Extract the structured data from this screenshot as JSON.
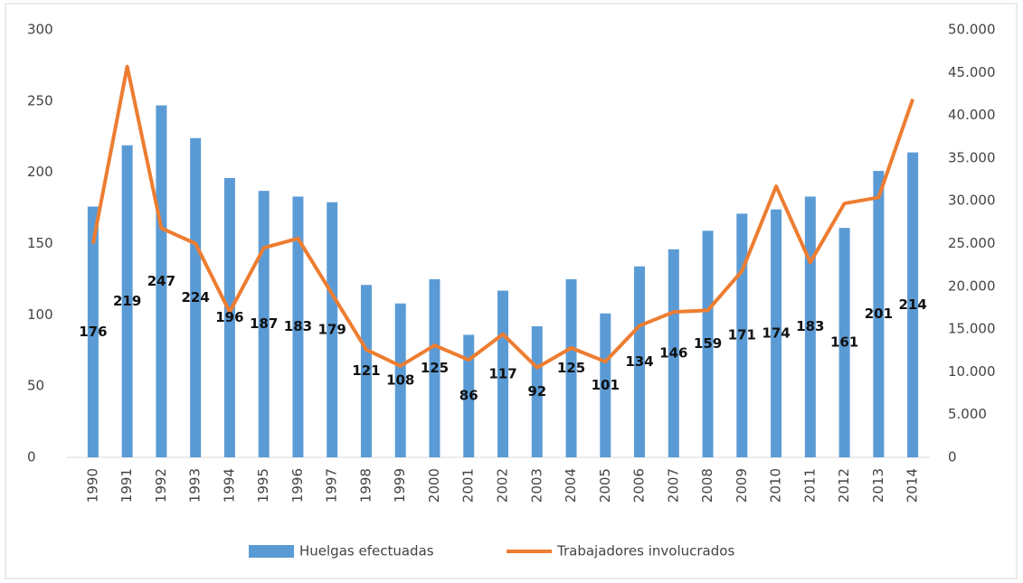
{
  "chart_data": {
    "type": "bar-line",
    "categories": [
      "1990",
      "1991",
      "1992",
      "1993",
      "1994",
      "1995",
      "1996",
      "1997",
      "1998",
      "1999",
      "2000",
      "2001",
      "2002",
      "2003",
      "2004",
      "2005",
      "2006",
      "2007",
      "2008",
      "2009",
      "2010",
      "2011",
      "2012",
      "2013",
      "2014"
    ],
    "series": [
      {
        "name": "Huelgas efectuadas",
        "type": "bar",
        "color": "#5b9bd5",
        "axis": "y",
        "values": [
          176,
          219,
          247,
          224,
          196,
          187,
          183,
          179,
          121,
          108,
          125,
          86,
          117,
          92,
          125,
          101,
          134,
          146,
          159,
          171,
          174,
          183,
          161,
          201,
          214
        ]
      },
      {
        "name": "Trabajadores involucrados",
        "type": "line",
        "color": "#ed7d31",
        "axis": "y2",
        "values": [
          25000,
          45700,
          26800,
          25000,
          17000,
          24500,
          25600,
          19100,
          12600,
          10700,
          13100,
          11400,
          14400,
          10500,
          12800,
          11200,
          15400,
          17000,
          17200,
          21800,
          31700,
          22800,
          29700,
          30400,
          41900
        ]
      }
    ],
    "ylim": [
      0,
      300
    ],
    "yticks": [
      0,
      50,
      100,
      150,
      200,
      250,
      300
    ],
    "y2lim": [
      0,
      50000
    ],
    "y2ticks": [
      0,
      {
        "value": 5000,
        "label": "5.000"
      },
      {
        "value": 10000,
        "label": "10.000"
      },
      {
        "value": 15000,
        "label": "15.000"
      },
      {
        "value": 20000,
        "label": "20.000"
      },
      {
        "value": 25000,
        "label": "25.000"
      },
      {
        "value": 30000,
        "label": "30.000"
      },
      {
        "value": 35000,
        "label": "35.000"
      },
      {
        "value": 40000,
        "label": "40.000"
      },
      {
        "value": 45000,
        "label": "45.000"
      },
      {
        "value": 50000,
        "label": "50.000"
      }
    ],
    "legend": "bottom"
  }
}
